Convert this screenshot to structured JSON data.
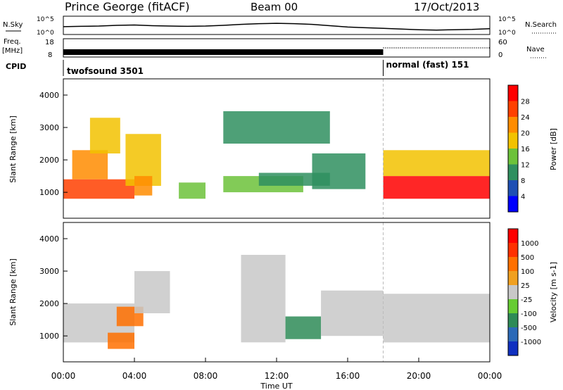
{
  "header": {
    "station": "Prince George (fitACF)",
    "beam": "Beam 00",
    "date": "17/Oct/2013"
  },
  "noise_panel": {
    "left_label": "N.Sky",
    "right_label": "N.Search",
    "left_ticks": [
      "10^5",
      "10^0"
    ],
    "right_ticks": [
      "10^5",
      "10^0"
    ]
  },
  "freq_panel": {
    "left_label_1": "Freq.",
    "left_label_2": "[MHz]",
    "left_ticks": [
      "18",
      "8"
    ],
    "right_label": "Nave",
    "right_ticks": [
      "60",
      "0"
    ]
  },
  "cpid_panel": {
    "label": "CPID",
    "segments": [
      {
        "label": "twofsound 3501",
        "start_hour": 0,
        "end_hour": 18
      },
      {
        "label": "normal (fast) 151",
        "start_hour": 18,
        "end_hour": 24
      }
    ]
  },
  "x_axis": {
    "label": "Time UT",
    "ticks": [
      "00:00",
      "04:00",
      "08:00",
      "12:00",
      "16:00",
      "20:00",
      "00:00"
    ]
  },
  "power_panel": {
    "y_label": "Slant Range [km]",
    "y_ticks": [
      "4000",
      "3000",
      "2000",
      "1000"
    ],
    "colorbar_label": "Power [dB]",
    "colorbar_ticks": [
      "28",
      "24",
      "20",
      "16",
      "12",
      "8",
      "4"
    ],
    "colors": [
      "#0000ff",
      "#1e4fb4",
      "#2f8f5f",
      "#6cc23a",
      "#f2c200",
      "#ff8c00",
      "#ff4000",
      "#ff0000"
    ]
  },
  "velocity_panel": {
    "y_label": "Slant Range [km]",
    "y_ticks": [
      "4000",
      "3000",
      "2000",
      "1000"
    ],
    "colorbar_label": "Velocity [m s-1]",
    "colorbar_ticks": [
      "1000",
      "500",
      "100",
      "25",
      "-25",
      "-100",
      "-500",
      "-1000"
    ],
    "colors": [
      "#1030c0",
      "#2c6ab8",
      "#2e8b57",
      "#66cc33",
      "#c8c8c8",
      "#f0a020",
      "#ff7000",
      "#ff3000",
      "#ff0000"
    ]
  },
  "chart_data": [
    {
      "type": "line",
      "title": "N.Sky",
      "x_unit": "hours UT",
      "x": [
        0,
        1,
        2,
        3,
        4,
        5,
        6,
        7,
        8,
        9,
        10,
        11,
        12,
        13,
        14,
        15,
        16,
        17,
        18,
        19,
        20,
        21,
        22,
        23,
        24
      ],
      "y_log10": [
        2.1,
        2.2,
        2.3,
        2.5,
        2.6,
        2.4,
        2.3,
        2.2,
        2.3,
        2.5,
        2.8,
        3.0,
        3.1,
        3.0,
        2.8,
        2.4,
        2.0,
        1.8,
        1.6,
        1.4,
        1.2,
        1.1,
        1.2,
        1.3,
        1.5
      ],
      "ylim_log10": [
        0,
        5
      ]
    },
    {
      "type": "line",
      "title": "Freq.",
      "x_unit": "hours UT",
      "segments": [
        {
          "x": [
            0,
            18
          ],
          "freq_mhz": 10.5
        },
        {
          "x": [
            18,
            24
          ],
          "freq_mhz": 10.5
        }
      ],
      "ylim": [
        8,
        18
      ],
      "nave": [
        {
          "x": [
            18,
            24
          ],
          "value": 30
        }
      ]
    },
    {
      "type": "heatmap",
      "title": "Power [dB]",
      "x_unit": "hours UT",
      "xlim": [
        0,
        24
      ],
      "y_unit": "slant range km",
      "ylim": [
        200,
        4500
      ],
      "value_range": [
        0,
        30
      ],
      "regions": [
        {
          "x": [
            0.0,
            4.0
          ],
          "y": [
            800,
            1400
          ],
          "value": 26
        },
        {
          "x": [
            0.5,
            2.5
          ],
          "y": [
            1400,
            2300
          ],
          "value": 20
        },
        {
          "x": [
            1.5,
            3.2
          ],
          "y": [
            2200,
            3300
          ],
          "value": 16
        },
        {
          "x": [
            3.5,
            5.5
          ],
          "y": [
            1200,
            2800
          ],
          "value": 18
        },
        {
          "x": [
            4.0,
            5.0
          ],
          "y": [
            900,
            1500
          ],
          "value": 22
        },
        {
          "x": [
            6.5,
            8.0
          ],
          "y": [
            800,
            1300
          ],
          "value": 12
        },
        {
          "x": [
            9.0,
            13.5
          ],
          "y": [
            1000,
            1500
          ],
          "value": 14
        },
        {
          "x": [
            11.0,
            15.0
          ],
          "y": [
            1200,
            1600
          ],
          "value": 10
        },
        {
          "x": [
            9.0,
            15.0
          ],
          "y": [
            2500,
            3500
          ],
          "value": 8
        },
        {
          "x": [
            14.0,
            17.0
          ],
          "y": [
            1100,
            2200
          ],
          "value": 10
        },
        {
          "x": [
            18.0,
            24.0
          ],
          "y": [
            800,
            1500
          ],
          "value": 27
        },
        {
          "x": [
            18.0,
            24.0
          ],
          "y": [
            1500,
            2300
          ],
          "value": 16
        }
      ]
    },
    {
      "type": "heatmap",
      "title": "Velocity [m s-1]",
      "x_unit": "hours UT",
      "xlim": [
        0,
        24
      ],
      "y_unit": "slant range km",
      "ylim": [
        200,
        4500
      ],
      "value_range": [
        -1000,
        1000
      ],
      "regions": [
        {
          "x": [
            0.0,
            4.0
          ],
          "y": [
            800,
            2000
          ],
          "value": 0
        },
        {
          "x": [
            3.0,
            4.5
          ],
          "y": [
            1300,
            1900
          ],
          "value": -300
        },
        {
          "x": [
            2.5,
            4.0
          ],
          "y": [
            600,
            1100
          ],
          "value": -150
        },
        {
          "x": [
            4.0,
            6.0
          ],
          "y": [
            1700,
            3000
          ],
          "value": 0
        },
        {
          "x": [
            10.0,
            12.5
          ],
          "y": [
            800,
            3500
          ],
          "value": 0
        },
        {
          "x": [
            12.5,
            14.5
          ],
          "y": [
            900,
            1600
          ],
          "value": 120
        },
        {
          "x": [
            14.5,
            18.0
          ],
          "y": [
            1000,
            2400
          ],
          "value": 0
        },
        {
          "x": [
            18.0,
            24.0
          ],
          "y": [
            800,
            2300
          ],
          "value": 0
        }
      ]
    }
  ]
}
